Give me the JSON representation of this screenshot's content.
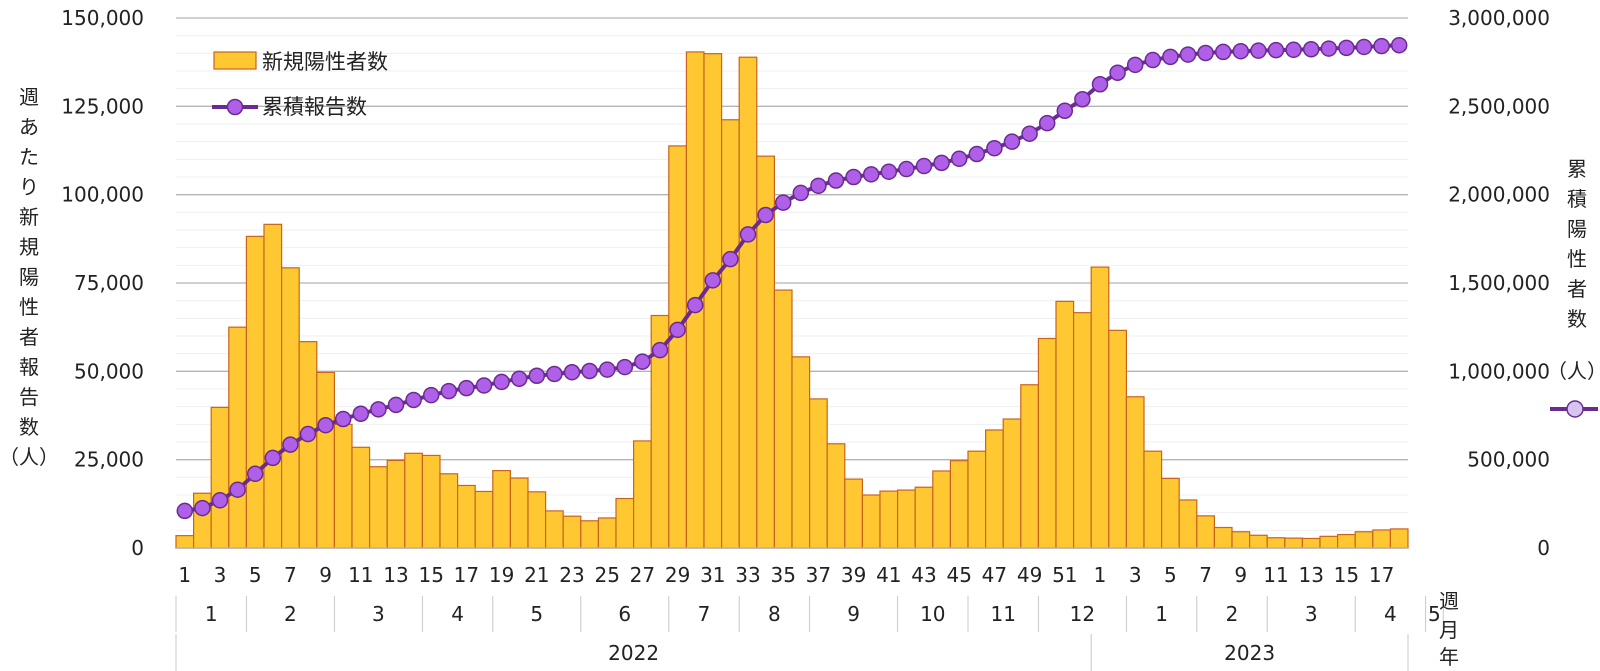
{
  "chart_data": {
    "type": "bar",
    "combo": "bar+line",
    "legend": {
      "placement": "top-left",
      "bar_label": "新規陽性者数",
      "line_label": "累積報告数"
    },
    "left_axis": {
      "title_chars": [
        "週",
        "あ",
        "た",
        "り",
        "新",
        "規",
        "陽",
        "性",
        "者",
        "報",
        "告",
        "数",
        "（人）"
      ],
      "range": [
        0,
        150000
      ],
      "tick_labels": [
        "0",
        "25,000",
        "50,000",
        "75,000",
        "100,000",
        "125,000",
        "150,000"
      ]
    },
    "right_axis": {
      "title_chars": [
        "累",
        "積",
        "陽",
        "性",
        "者",
        "数",
        "（人）"
      ],
      "range": [
        0,
        3000000
      ],
      "tick_labels": [
        "0",
        "500,000",
        "1,000,000",
        "1,500,000",
        "2,000,000",
        "2,500,000",
        "3,000,000"
      ]
    },
    "x_axis": {
      "week_label": "週",
      "month_label": "月",
      "year_label": "年",
      "week_ticks": [
        "1",
        "3",
        "5",
        "7",
        "9",
        "11",
        "13",
        "15",
        "17",
        "19",
        "21",
        "23",
        "25",
        "27",
        "29",
        "31",
        "33",
        "35",
        "37",
        "39",
        "41",
        "43",
        "45",
        "47",
        "49",
        "51",
        "1",
        "3",
        "5",
        "7",
        "9",
        "11",
        "13",
        "15",
        "17"
      ],
      "months": [
        {
          "label": "1",
          "weeks": 4
        },
        {
          "label": "2",
          "weeks": 5
        },
        {
          "label": "3",
          "weeks": 5
        },
        {
          "label": "4",
          "weeks": 4
        },
        {
          "label": "5",
          "weeks": 5
        },
        {
          "label": "6",
          "weeks": 5
        },
        {
          "label": "7",
          "weeks": 4
        },
        {
          "label": "8",
          "weeks": 4
        },
        {
          "label": "9",
          "weeks": 5
        },
        {
          "label": "10",
          "weeks": 4
        },
        {
          "label": "11",
          "weeks": 4
        },
        {
          "label": "12",
          "weeks": 5
        },
        {
          "label": "1",
          "weeks": 4
        },
        {
          "label": "2",
          "weeks": 4
        },
        {
          "label": "3",
          "weeks": 5
        },
        {
          "label": "4",
          "weeks": 4
        },
        {
          "label": "5",
          "weeks": 1
        }
      ],
      "years": [
        {
          "label": "2022",
          "weeks": 52
        },
        {
          "label": "2023",
          "weeks": 18
        }
      ]
    },
    "grid": true,
    "series": [
      {
        "name": "新規陽性者数",
        "type": "bar",
        "axis": "left",
        "color": "#FFC832",
        "edge_color": "#C8641E",
        "values": [
          3500,
          15500,
          39800,
          62500,
          88200,
          91600,
          79300,
          58400,
          49700,
          35000,
          28500,
          23000,
          24800,
          26800,
          26200,
          21000,
          17700,
          16000,
          21900,
          19800,
          15900,
          10500,
          9000,
          7700,
          8500,
          14000,
          30300,
          65800,
          113800,
          140400,
          139900,
          121200,
          138900,
          110900,
          73000,
          54100,
          42200,
          29500,
          19500,
          15000,
          16100,
          16400,
          17200,
          21800,
          24700,
          27400,
          33400,
          36500,
          46200,
          59300,
          69800,
          66600,
          79500,
          61600,
          42800,
          27400,
          19700,
          13600,
          9100,
          5800,
          4600,
          3600,
          2900,
          2800,
          2700,
          3300,
          3800,
          4600,
          5100,
          5400
        ]
      },
      {
        "name": "累積報告数",
        "type": "line",
        "axis": "right",
        "color": "#6A2C91",
        "marker_color": "#B060E8",
        "values": [
          210000,
          226000,
          270000,
          330000,
          420000,
          510000,
          585000,
          645000,
          695000,
          730000,
          760000,
          785000,
          810000,
          838000,
          865000,
          888000,
          905000,
          920000,
          940000,
          958000,
          975000,
          985000,
          995000,
          1002000,
          1010000,
          1024000,
          1055000,
          1120000,
          1235000,
          1375000,
          1515000,
          1635000,
          1775000,
          1885000,
          1955000,
          2010000,
          2050000,
          2080000,
          2100000,
          2115000,
          2130000,
          2145000,
          2162000,
          2180000,
          2203000,
          2230000,
          2263000,
          2300000,
          2345000,
          2405000,
          2475000,
          2540000,
          2625000,
          2690000,
          2735000,
          2762000,
          2780000,
          2793000,
          2802000,
          2808000,
          2812000,
          2815000,
          2818000,
          2820000,
          2823000,
          2827000,
          2831000,
          2836000,
          2841000,
          2846000
        ]
      }
    ]
  }
}
